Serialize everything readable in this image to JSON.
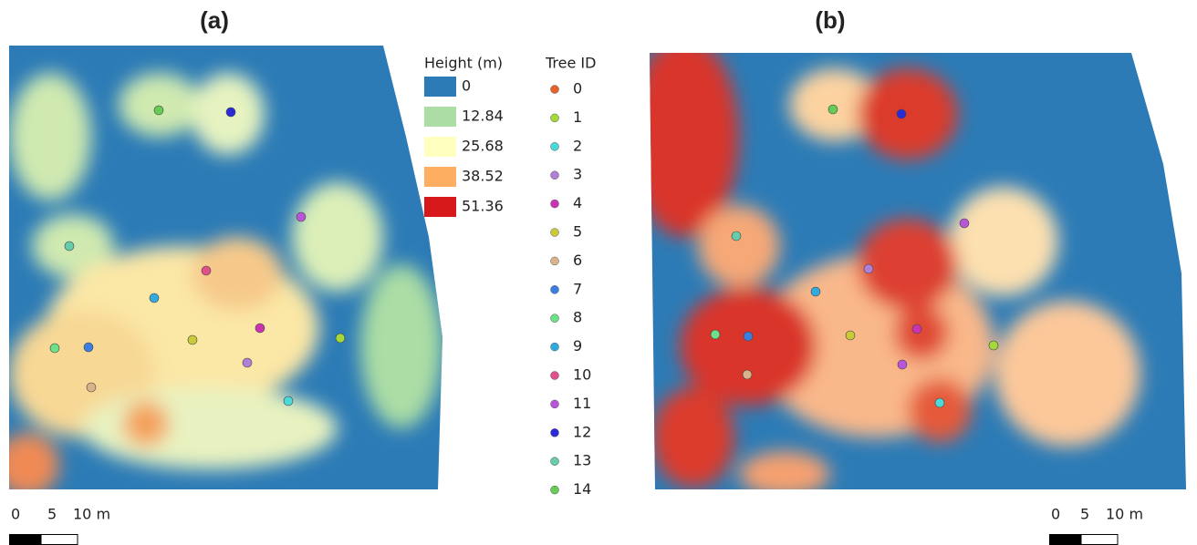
{
  "panels": [
    {
      "label": "(a)"
    },
    {
      "label": "(b)"
    }
  ],
  "height_legend": {
    "title": "Height (m)",
    "entries": [
      {
        "value": 0,
        "color": "#2c7bb6"
      },
      {
        "value": 12.84,
        "color": "#abdda4"
      },
      {
        "value": 25.68,
        "color": "#ffffbf"
      },
      {
        "value": 38.52,
        "color": "#fdae61"
      },
      {
        "value": 51.36,
        "color": "#d7191c"
      }
    ]
  },
  "tree_legend": {
    "title": "Tree ID",
    "entries": [
      {
        "id": 0,
        "color": "#e8612c"
      },
      {
        "id": 1,
        "color": "#a3d93a"
      },
      {
        "id": 2,
        "color": "#4dd9d9"
      },
      {
        "id": 3,
        "color": "#b07fd6"
      },
      {
        "id": 4,
        "color": "#cc33b3"
      },
      {
        "id": 5,
        "color": "#c9c93a"
      },
      {
        "id": 6,
        "color": "#d9b38a"
      },
      {
        "id": 7,
        "color": "#3a7fe0"
      },
      {
        "id": 8,
        "color": "#6fe08a"
      },
      {
        "id": 9,
        "color": "#33aadd"
      },
      {
        "id": 10,
        "color": "#e0508a"
      },
      {
        "id": 11,
        "color": "#b855d9"
      },
      {
        "id": 12,
        "color": "#2a2ad9"
      },
      {
        "id": 13,
        "color": "#66ccaa"
      },
      {
        "id": 14,
        "color": "#66cc55"
      }
    ]
  },
  "scale_bar": {
    "labels": [
      "0",
      "5",
      "10 m"
    ]
  }
}
